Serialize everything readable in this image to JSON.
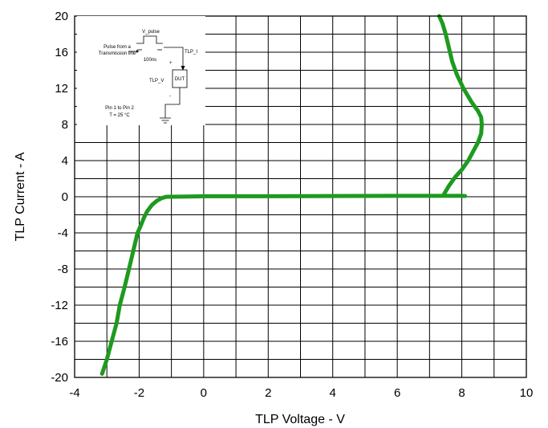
{
  "chart_data": {
    "type": "line",
    "title": "",
    "xlabel": "TLP Voltage - V",
    "ylabel": "TLP Current - A",
    "xlim": [
      -4,
      10
    ],
    "ylim": [
      -20,
      20
    ],
    "x_ticks": [
      "-4",
      "-2",
      "0",
      "2",
      "4",
      "6",
      "8",
      "10"
    ],
    "y_ticks": [
      "20",
      "16",
      "12",
      "8",
      "4",
      "0",
      "-4",
      "-8",
      "-12",
      "-16",
      "-20"
    ],
    "grid": true,
    "series_color": "#1e9a1e",
    "series": [
      {
        "x": [
          -3.15,
          -3.0,
          -2.85,
          -2.7,
          -2.6,
          -2.45,
          -2.35,
          -2.25,
          -2.15,
          -2.05,
          -1.95,
          -1.85,
          -1.75,
          -1.6,
          -1.45,
          -1.3,
          -1.15,
          -1.0,
          -0.5,
          0.0,
          2.0,
          4.0,
          6.0,
          7.0,
          7.5,
          8.0,
          8.1
        ],
        "y": [
          -19.6,
          -18.0,
          -16.0,
          -14.0,
          -12.0,
          -10.0,
          -8.5,
          -7.0,
          -5.5,
          -4.0,
          -3.2,
          -2.3,
          -1.6,
          -0.9,
          -0.45,
          -0.15,
          0.0,
          0.0,
          0.02,
          0.05,
          0.05,
          0.08,
          0.1,
          0.1,
          0.1,
          0.1,
          0.08
        ]
      },
      {
        "x": [
          7.45,
          7.6,
          7.8,
          8.0,
          8.2,
          8.35,
          8.5,
          8.6,
          8.62,
          8.6,
          8.5,
          8.3,
          8.05,
          7.85,
          7.7,
          7.6,
          7.5,
          7.4,
          7.3
        ],
        "y": [
          0.3,
          1.2,
          2.2,
          3.0,
          4.0,
          5.0,
          6.0,
          7.0,
          8.0,
          8.8,
          9.5,
          10.5,
          12.0,
          13.5,
          15.0,
          16.5,
          18.0,
          19.2,
          20.0
        ]
      }
    ]
  },
  "inset": {
    "v_pulse": "V_pulse",
    "source_line1": "Pulse from a",
    "source_line2": "Transmission line",
    "width": "100ns",
    "tlp_i": "TLP_I",
    "tlp_v": "TLP_V",
    "dut": "DUT",
    "plus": "+",
    "minus": "-",
    "pins": "Pin 1 to Pin 2",
    "temp": "T = 25 °C"
  }
}
